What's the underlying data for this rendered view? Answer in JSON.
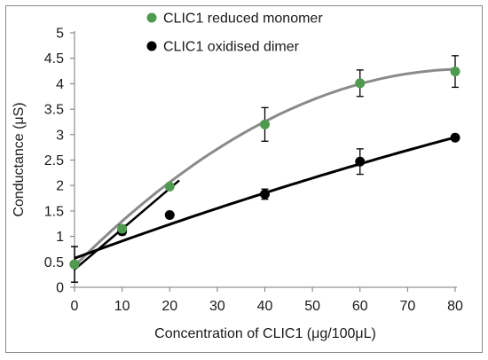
{
  "chart_data": {
    "type": "scatter",
    "title": "",
    "xlabel": "Concentration of CLIC1 (μg/100μL)",
    "ylabel": "Conductance (μS)",
    "xlim": [
      0,
      80
    ],
    "ylim": [
      0,
      5
    ],
    "x_ticks": [
      0,
      10,
      20,
      30,
      40,
      50,
      60,
      70,
      80
    ],
    "y_ticks": [
      "0",
      "0.5",
      "1",
      "1.5",
      "2",
      "2.5",
      "3",
      "3.5",
      "4",
      "4.5",
      "5"
    ],
    "grid": false,
    "legend_position": "top-center",
    "series": [
      {
        "name": "CLIC1 reduced monomer",
        "color": "#4e9a4e",
        "fit_color": "#8a8a8a",
        "x": [
          0,
          10,
          20,
          40,
          60,
          80
        ],
        "y": [
          0.45,
          1.15,
          1.98,
          3.2,
          4.01,
          4.24
        ],
        "y_error": [
          0.35,
          0.07,
          0.05,
          0.33,
          0.26,
          0.31
        ],
        "fit": {
          "type": "quadratic",
          "x_range": [
            0,
            80
          ],
          "y_start": 0.42,
          "y_end": 4.27
        }
      },
      {
        "name": "CLIC1 oxidised dimer",
        "color": "#000000",
        "fit_color": "#000000",
        "x": [
          0,
          10,
          20,
          40,
          60,
          80
        ],
        "y": [
          0.45,
          1.1,
          1.42,
          1.83,
          2.47,
          2.94
        ],
        "y_error": [
          0.35,
          0.07,
          0.05,
          0.1,
          0.25,
          0.05
        ],
        "fit": {
          "type": "curve",
          "x_range": [
            0,
            80
          ],
          "y_start": 0.57,
          "y_end": 2.94
        }
      }
    ],
    "initial_slope_line": {
      "x": [
        0,
        22
      ],
      "y": [
        0.35,
        2.1
      ],
      "color": "#000000"
    }
  }
}
